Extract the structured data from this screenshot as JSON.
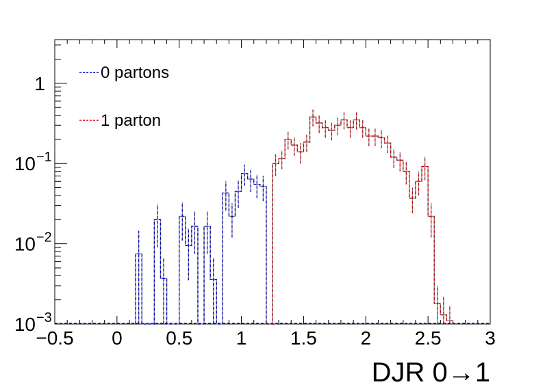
{
  "chart_data": {
    "type": "histogram-step",
    "xlabel": "DJR 0→1",
    "ylabel": "",
    "xlim": [
      -0.5,
      3.0
    ],
    "ylim": [
      0.001,
      3.5
    ],
    "yscale": "log",
    "bin_width": 0.05,
    "x_ticks": [
      {
        "value": -0.5,
        "label": "−0.5"
      },
      {
        "value": 0,
        "label": "0"
      },
      {
        "value": 0.5,
        "label": "0.5"
      },
      {
        "value": 1,
        "label": "1"
      },
      {
        "value": 1.5,
        "label": "1.5"
      },
      {
        "value": 2,
        "label": "2"
      },
      {
        "value": 2.5,
        "label": "2.5"
      },
      {
        "value": 3,
        "label": "3"
      }
    ],
    "y_ticks": [
      {
        "value": 0.001,
        "base": "10",
        "exp": "−3"
      },
      {
        "value": 0.01,
        "base": "10",
        "exp": "−2"
      },
      {
        "value": 0.1,
        "base": "10",
        "exp": "−1"
      },
      {
        "value": 1,
        "base": "1",
        "exp": ""
      }
    ],
    "legend_position": "top-left",
    "series": [
      {
        "name": "0 partons",
        "color": "#0000cc",
        "bins": [
          [
            0.15,
            0.0075,
            0.007
          ],
          [
            0.2,
            0.001,
            0
          ],
          [
            0.25,
            0.001,
            0
          ],
          [
            0.3,
            0.02,
            0.011
          ],
          [
            0.35,
            0.0037,
            0.003
          ],
          [
            0.4,
            0.001,
            0
          ],
          [
            0.45,
            0.001,
            0
          ],
          [
            0.5,
            0.022,
            0.011
          ],
          [
            0.55,
            0.0095,
            0.006
          ],
          [
            0.6,
            0.0165,
            0.009
          ],
          [
            0.65,
            0.001,
            0
          ],
          [
            0.7,
            0.0165,
            0.009
          ],
          [
            0.75,
            0.0036,
            0.003
          ],
          [
            0.8,
            0.001,
            0
          ],
          [
            0.85,
            0.043,
            0.017
          ],
          [
            0.9,
            0.022,
            0.01
          ],
          [
            0.95,
            0.045,
            0.017
          ],
          [
            1.0,
            0.075,
            0.022
          ],
          [
            1.05,
            0.064,
            0.02
          ],
          [
            1.1,
            0.055,
            0.018
          ],
          [
            1.15,
            0.052,
            0.018
          ],
          [
            1.2,
            0.001,
            0
          ],
          [
            1.25,
            0.001,
            0
          ]
        ]
      },
      {
        "name": "1 parton",
        "color": "#cc0000",
        "bins": [
          [
            1.2,
            0.001,
            0
          ],
          [
            1.25,
            0.1,
            0.03
          ],
          [
            1.3,
            0.115,
            0.03
          ],
          [
            1.35,
            0.2,
            0.05
          ],
          [
            1.4,
            0.17,
            0.045
          ],
          [
            1.45,
            0.14,
            0.04
          ],
          [
            1.5,
            0.185,
            0.045
          ],
          [
            1.55,
            0.38,
            0.09
          ],
          [
            1.6,
            0.32,
            0.08
          ],
          [
            1.65,
            0.28,
            0.07
          ],
          [
            1.7,
            0.26,
            0.065
          ],
          [
            1.75,
            0.3,
            0.075
          ],
          [
            1.8,
            0.35,
            0.085
          ],
          [
            1.85,
            0.28,
            0.07
          ],
          [
            1.9,
            0.35,
            0.085
          ],
          [
            1.95,
            0.28,
            0.07
          ],
          [
            2.0,
            0.22,
            0.055
          ],
          [
            2.05,
            0.22,
            0.055
          ],
          [
            2.1,
            0.21,
            0.055
          ],
          [
            2.15,
            0.18,
            0.045
          ],
          [
            2.2,
            0.12,
            0.032
          ],
          [
            2.25,
            0.11,
            0.03
          ],
          [
            2.3,
            0.08,
            0.025
          ],
          [
            2.35,
            0.037,
            0.013
          ],
          [
            2.4,
            0.06,
            0.02
          ],
          [
            2.45,
            0.092,
            0.03
          ],
          [
            2.5,
            0.022,
            0.01
          ],
          [
            2.55,
            0.0018,
            0.0012
          ],
          [
            2.6,
            0.0013,
            0.0009
          ],
          [
            2.65,
            0.0011,
            0.0006
          ]
        ]
      }
    ]
  }
}
